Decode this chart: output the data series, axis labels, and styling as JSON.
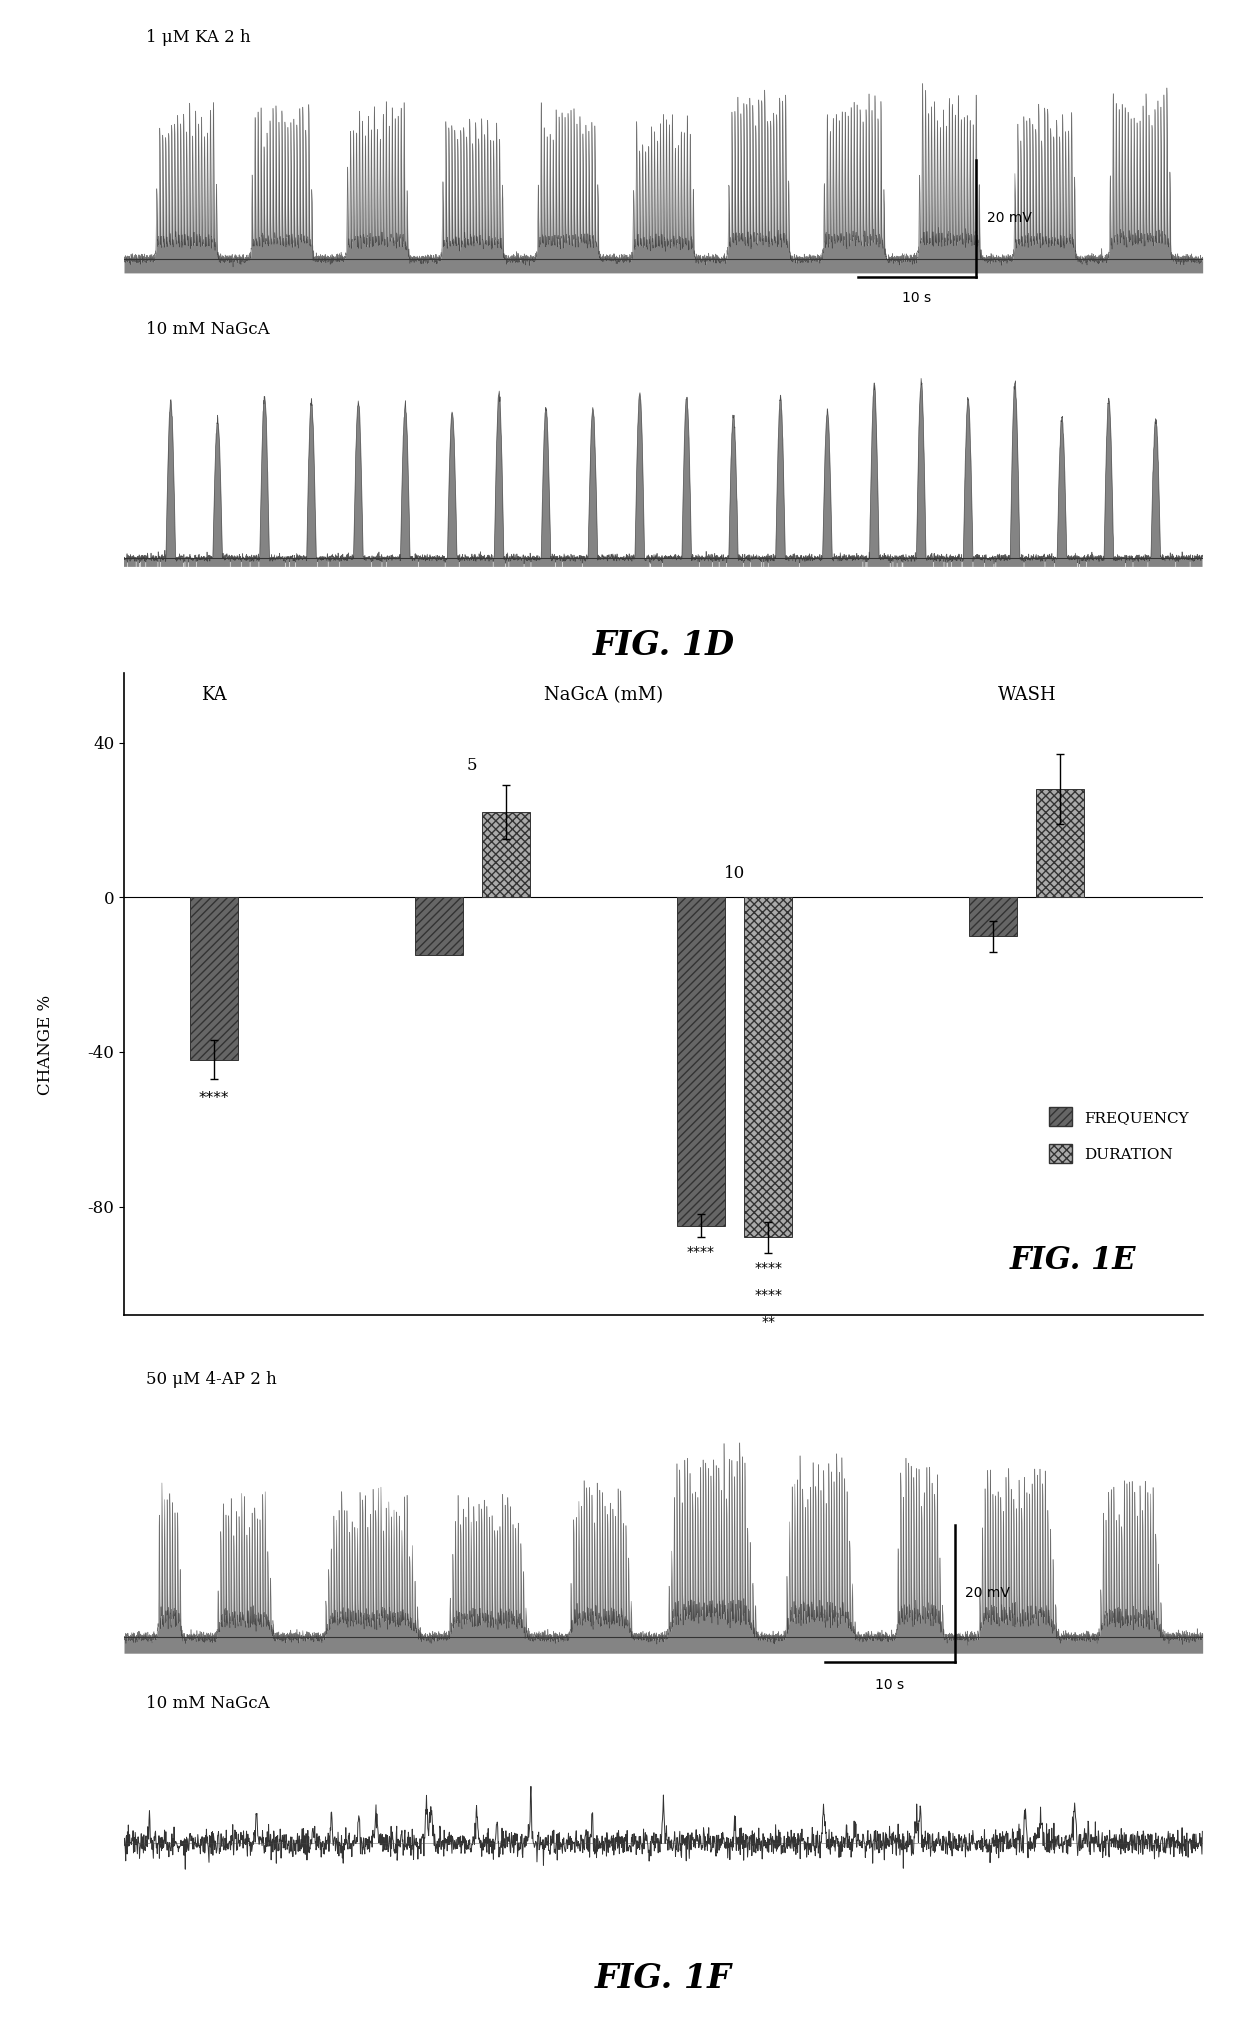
{
  "fig1d_label": "FIG. 1D",
  "fig1e_label": "FIG. 1E",
  "fig1f_label": "FIG. 1F",
  "trace1d_top_label": "1 μM KA 2 h",
  "trace1d_bot_label": "10 mM NaGcA",
  "trace1f_top_label": "50 μM 4-AP 2 h",
  "trace1f_bot_label": "10 mM NaGcA",
  "scale_bar_label_v": "20 mV",
  "scale_bar_label_h": "10 s",
  "freq_color": "#666666",
  "dur_color": "#aaaaaa",
  "trace_color": "#444444",
  "ylabel": "CHANGE %",
  "yticks": [
    40,
    0,
    -40,
    -80
  ],
  "background_color": "#ffffff",
  "ka_freq_val": -42,
  "ka_freq_err": 5,
  "n5mm_freq_val": -15,
  "n5mm_freq_err": 4,
  "n5mm_dur_val": 22,
  "n5mm_dur_err": 7,
  "n10mm_freq_val": -85,
  "n10mm_freq_err": 3,
  "n10mm_dur_val": -88,
  "n10mm_dur_err": 4,
  "wash_freq_val": -10,
  "wash_freq_err": 4,
  "wash_dur_val": 28,
  "wash_dur_err": 9
}
